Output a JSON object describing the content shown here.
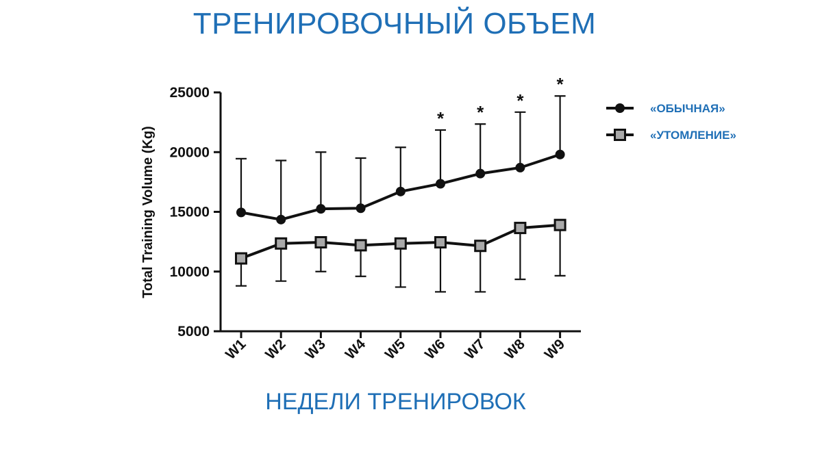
{
  "title": "ТРЕНИРОВОЧНЫЙ ОБЪЕМ",
  "x_caption": "НЕДЕЛИ ТРЕНИРОВОК",
  "colors": {
    "title": "#1f6fb6",
    "line": "#111111",
    "square_fill": "#a9a9a9"
  },
  "chart_data": {
    "type": "line",
    "ylabel": "Total Training Volume (Kg)",
    "xlabel": "",
    "ylim": [
      5000,
      25000
    ],
    "yticks": [
      "5000",
      "10000",
      "15000",
      "20000",
      "25000"
    ],
    "categories": [
      "W1",
      "W2",
      "W3",
      "W4",
      "W5",
      "W6",
      "W7",
      "W8",
      "W9"
    ],
    "legend_position": "right",
    "grid": false,
    "series": [
      {
        "name": "«ОБЫЧНАЯ»",
        "marker": "circle",
        "values": [
          14950,
          14350,
          15250,
          15300,
          16700,
          17350,
          18200,
          18700,
          19800
        ],
        "error_upper": [
          19450,
          19300,
          20000,
          19500,
          20400,
          21850,
          22350,
          23350,
          24700
        ],
        "error_side": "upper"
      },
      {
        "name": "«УТОМЛЕНИЕ»",
        "marker": "square",
        "values": [
          11100,
          12350,
          12450,
          12200,
          12350,
          12450,
          12150,
          13650,
          13900
        ],
        "error_lower": [
          8800,
          9200,
          10000,
          9600,
          8700,
          8300,
          8300,
          9350,
          9650
        ],
        "error_side": "lower"
      }
    ],
    "annotations": [
      {
        "category": "W6",
        "text": "*"
      },
      {
        "category": "W7",
        "text": "*"
      },
      {
        "category": "W8",
        "text": "*"
      },
      {
        "category": "W9",
        "text": "*"
      }
    ]
  }
}
